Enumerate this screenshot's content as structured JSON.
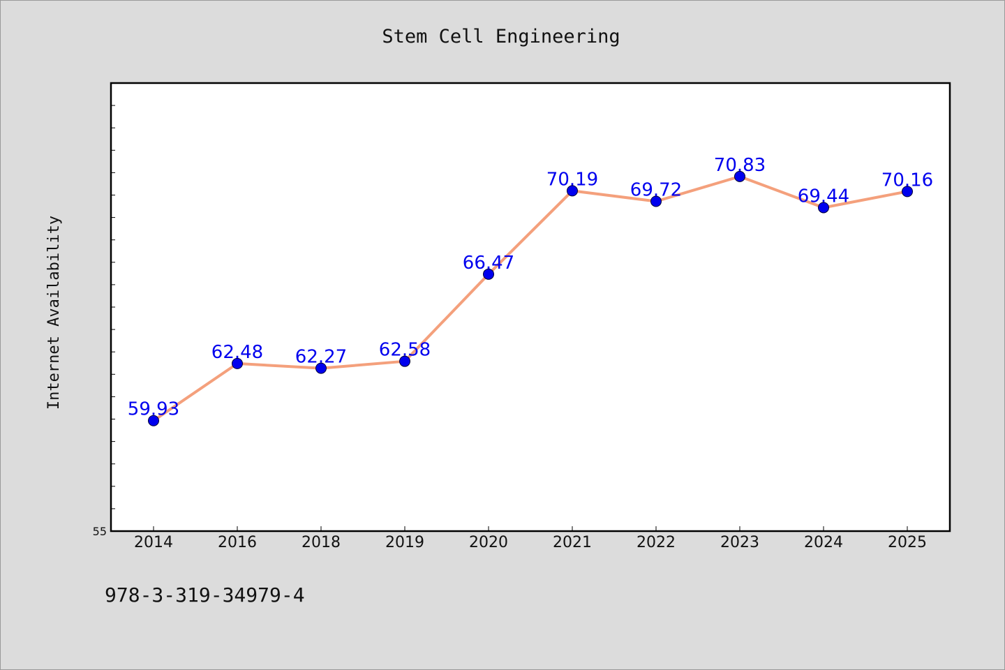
{
  "chart_data": {
    "type": "line",
    "title": "Stem Cell Engineering",
    "xlabel": "",
    "ylabel": "Internet Availability",
    "categories": [
      "2014",
      "2016",
      "2018",
      "2019",
      "2020",
      "2021",
      "2022",
      "2023",
      "2024",
      "2025"
    ],
    "series": [
      {
        "values": [
          59.93,
          62.48,
          62.27,
          62.58,
          66.47,
          70.19,
          69.72,
          70.83,
          69.44,
          70.16
        ],
        "labels": [
          "59.93",
          "62.48",
          "62.27",
          "62.58",
          "66.47",
          "70.19",
          "69.72",
          "70.83",
          "69.44",
          "70.16"
        ],
        "line_color": "#f4a07c",
        "marker_color": "#0000ee",
        "label_color": "#0000ee"
      }
    ],
    "y_tick_labels": [
      {
        "value": 55,
        "label": "55"
      }
    ],
    "ylim": [
      55,
      75
    ],
    "minor_tick_step": 1,
    "grid": false,
    "legend": "none"
  },
  "footnote": "978-3-319-34979-4"
}
